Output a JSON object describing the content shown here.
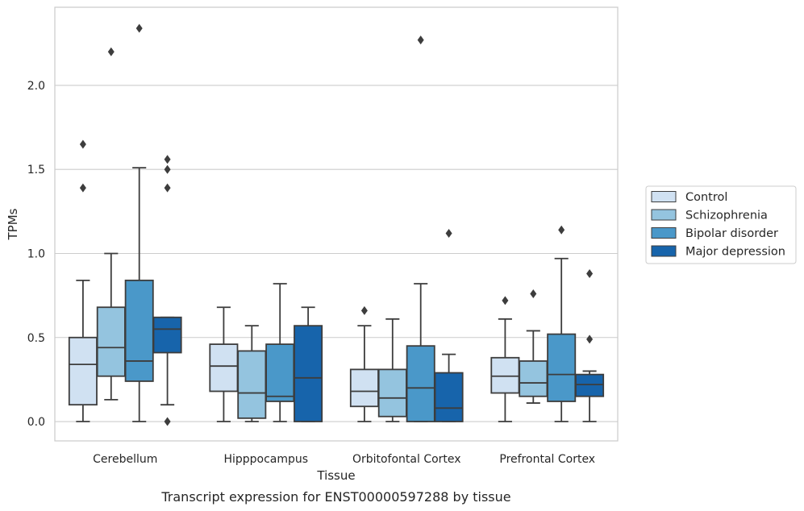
{
  "chart_data": {
    "type": "box",
    "caption": "Transcript expression for ENST00000597288 by tissue",
    "xlabel": "Tissue",
    "ylabel": "TPMs",
    "ylim": [
      -0.115,
      2.465
    ],
    "yticks": [
      0.0,
      0.5,
      1.0,
      1.5,
      2.0
    ],
    "ytick_labels": [
      "0.0",
      "0.5",
      "1.0",
      "1.5",
      "2.0"
    ],
    "grid": true,
    "legend_position": "right",
    "categories": [
      "Cerebellum",
      "Hipppocampus",
      "Orbitofontal Cortex",
      "Prefrontal Cortex"
    ],
    "series": [
      {
        "name": "Control",
        "color": "#d0e1f2",
        "boxes": [
          {
            "whisker_low": 0.0,
            "q1": 0.1,
            "median": 0.34,
            "q3": 0.5,
            "whisker_high": 0.84,
            "outliers": [
              1.39,
              1.65
            ]
          },
          {
            "whisker_low": 0.0,
            "q1": 0.18,
            "median": 0.33,
            "q3": 0.46,
            "whisker_high": 0.68,
            "outliers": []
          },
          {
            "whisker_low": 0.0,
            "q1": 0.09,
            "median": 0.18,
            "q3": 0.31,
            "whisker_high": 0.57,
            "outliers": [
              0.66
            ]
          },
          {
            "whisker_low": 0.0,
            "q1": 0.17,
            "median": 0.27,
            "q3": 0.38,
            "whisker_high": 0.61,
            "outliers": [
              0.72
            ]
          }
        ]
      },
      {
        "name": "Schizophrenia",
        "color": "#94c4df",
        "boxes": [
          {
            "whisker_low": 0.13,
            "q1": 0.27,
            "median": 0.44,
            "q3": 0.68,
            "whisker_high": 1.0,
            "outliers": [
              2.2
            ]
          },
          {
            "whisker_low": 0.0,
            "q1": 0.02,
            "median": 0.17,
            "q3": 0.42,
            "whisker_high": 0.57,
            "outliers": []
          },
          {
            "whisker_low": 0.0,
            "q1": 0.03,
            "median": 0.14,
            "q3": 0.31,
            "whisker_high": 0.61,
            "outliers": []
          },
          {
            "whisker_low": 0.11,
            "q1": 0.15,
            "median": 0.23,
            "q3": 0.36,
            "whisker_high": 0.54,
            "outliers": [
              0.76
            ]
          }
        ]
      },
      {
        "name": "Bipolar disorder",
        "color": "#4a98c9",
        "boxes": [
          {
            "whisker_low": 0.0,
            "q1": 0.24,
            "median": 0.36,
            "q3": 0.84,
            "whisker_high": 1.51,
            "outliers": [
              2.34
            ]
          },
          {
            "whisker_low": 0.0,
            "q1": 0.12,
            "median": 0.15,
            "q3": 0.46,
            "whisker_high": 0.82,
            "outliers": []
          },
          {
            "whisker_low": 0.0,
            "q1": 0.0,
            "median": 0.2,
            "q3": 0.45,
            "whisker_high": 0.82,
            "outliers": [
              2.27
            ]
          },
          {
            "whisker_low": 0.0,
            "q1": 0.12,
            "median": 0.28,
            "q3": 0.52,
            "whisker_high": 0.97,
            "outliers": [
              1.14
            ]
          }
        ]
      },
      {
        "name": "Major depression",
        "color": "#1764ab",
        "boxes": [
          {
            "whisker_low": 0.1,
            "q1": 0.41,
            "median": 0.55,
            "q3": 0.62,
            "whisker_high": 0.62,
            "outliers": [
              0.0,
              1.39,
              1.5,
              1.56
            ]
          },
          {
            "whisker_low": 0.0,
            "q1": 0.0,
            "median": 0.26,
            "q3": 0.57,
            "whisker_high": 0.68,
            "outliers": []
          },
          {
            "whisker_low": 0.0,
            "q1": 0.0,
            "median": 0.08,
            "q3": 0.29,
            "whisker_high": 0.4,
            "outliers": [
              1.12
            ]
          },
          {
            "whisker_low": 0.0,
            "q1": 0.15,
            "median": 0.22,
            "q3": 0.28,
            "whisker_high": 0.3,
            "outliers": [
              0.49,
              0.88
            ]
          }
        ]
      }
    ]
  }
}
